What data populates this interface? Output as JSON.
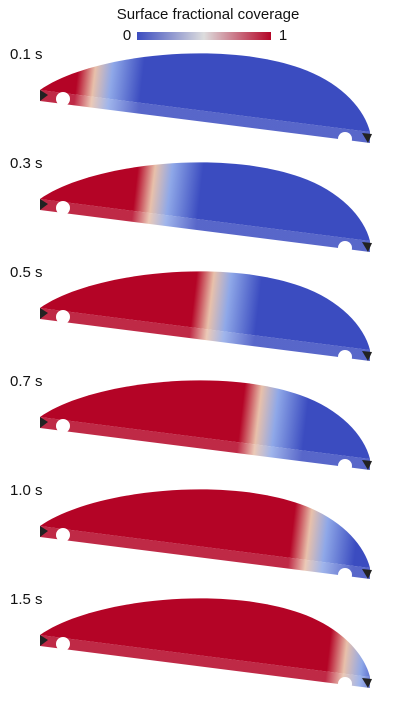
{
  "colorbar": {
    "title": "Surface fractional coverage",
    "min_label": "0",
    "max_label": "1"
  },
  "panels": [
    {
      "label": "0.1 s"
    },
    {
      "label": "0.3 s"
    },
    {
      "label": "0.5 s"
    },
    {
      "label": "0.7 s"
    },
    {
      "label": "1.0 s"
    },
    {
      "label": "1.5 s"
    }
  ]
}
